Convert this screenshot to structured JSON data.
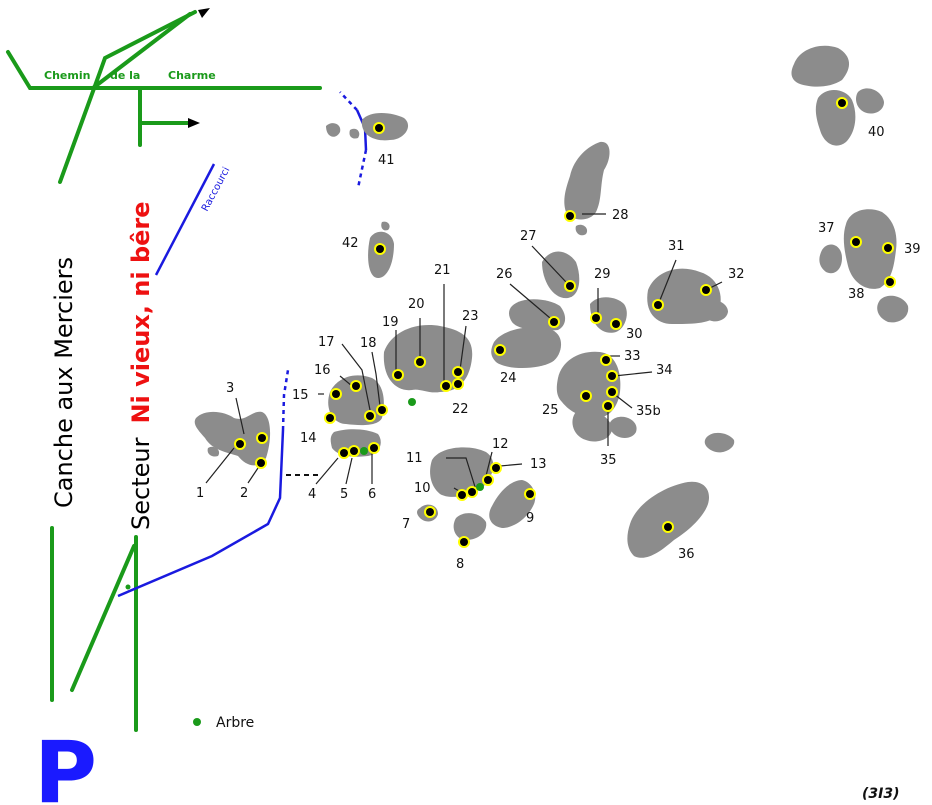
{
  "roads": {
    "chemin_part1": "Chemin",
    "chemin_part2": "de la",
    "chemin_part3": "Charme",
    "raccourci": "Raccourci"
  },
  "sector": {
    "canche": "Canche aux Merciers",
    "secteur_prefix": "Secteur",
    "secteur_name": "Ni vieux, ni bêre"
  },
  "legend": {
    "tree_label": "Arbre"
  },
  "parking": {
    "label": "P"
  },
  "footer": {
    "code": "(3I3)"
  },
  "colors": {
    "road": "#1a9a1a",
    "path": "#1a1adf",
    "rock": "#8c8c8c",
    "sector_name": "#ee1111",
    "tree": "#1a9a1a",
    "marker_ring": "#ffff00"
  },
  "boulders": [
    "1",
    "2",
    "3",
    "4",
    "5",
    "6",
    "7",
    "8",
    "9",
    "10",
    "11",
    "12",
    "13",
    "14",
    "15",
    "16",
    "17",
    "18",
    "19",
    "20",
    "21",
    "22",
    "23",
    "24",
    "25",
    "26",
    "27",
    "28",
    "29",
    "30",
    "31",
    "32",
    "33",
    "34",
    "35",
    "35b",
    "36",
    "37",
    "38",
    "39",
    "40",
    "41",
    "42"
  ]
}
